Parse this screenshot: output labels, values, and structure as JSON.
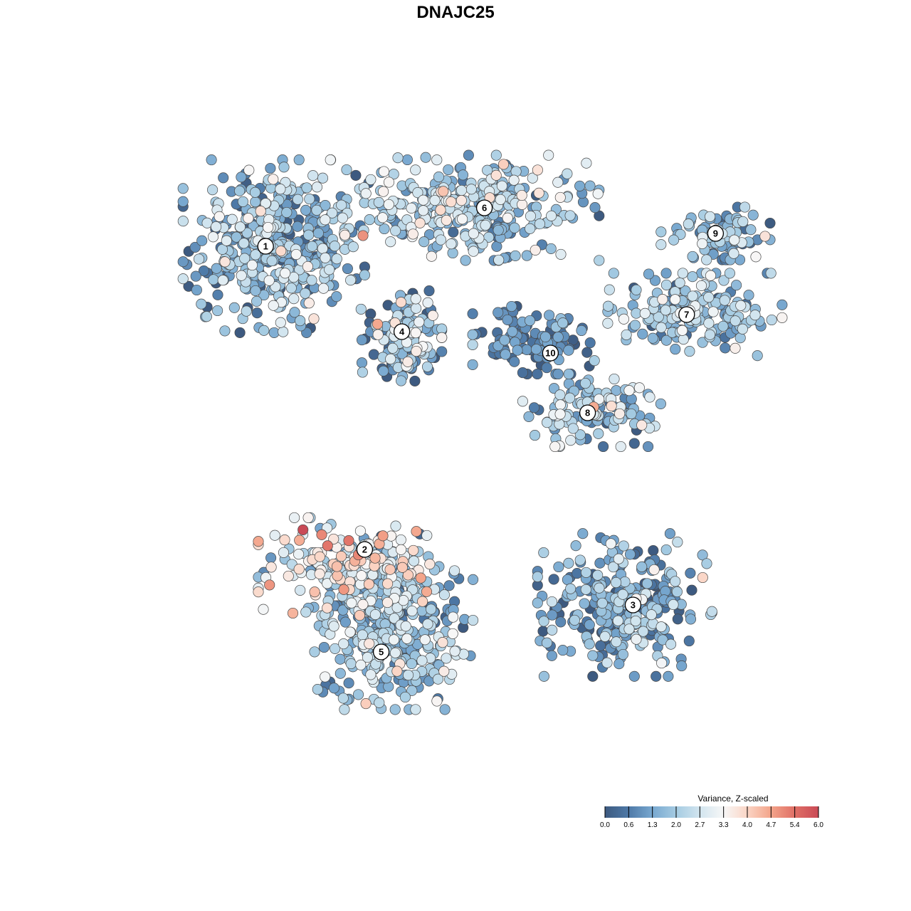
{
  "title": "DNAJC25",
  "chart_data": {
    "type": "scatter",
    "title": "DNAJC25",
    "xlabel": "",
    "ylabel": "",
    "grid": false,
    "legend_placement": "bottom-right",
    "color_scale": {
      "title": "Variance, Z-scaled",
      "min": 0.0,
      "max": 6.0,
      "tick_labels": [
        "0.0",
        "0.6",
        "1.3",
        "2.0",
        "2.7",
        "3.3",
        "4.0",
        "4.7",
        "5.4",
        "6.0"
      ],
      "colors": [
        "#3d5a80",
        "#4e79a7",
        "#78a8d0",
        "#a5cbe2",
        "#d2e5ef",
        "#f7f7f7",
        "#fbd5c5",
        "#f3a48a",
        "#e06f66",
        "#c94a56"
      ]
    },
    "clusters": [
      {
        "label": "1",
        "x": -4.6,
        "y": 4.9,
        "mean_value": 1.6
      },
      {
        "label": "2",
        "x": -2.2,
        "y": -2.2,
        "mean_value": 2.8
      },
      {
        "label": "3",
        "x": 4.3,
        "y": -3.5,
        "mean_value": 1.4
      },
      {
        "label": "4",
        "x": -1.3,
        "y": 2.9,
        "mean_value": 1.5
      },
      {
        "label": "5",
        "x": -1.8,
        "y": -4.6,
        "mean_value": 1.8
      },
      {
        "label": "6",
        "x": 0.7,
        "y": 5.8,
        "mean_value": 2.0
      },
      {
        "label": "7",
        "x": 5.6,
        "y": 3.3,
        "mean_value": 1.8
      },
      {
        "label": "8",
        "x": 3.2,
        "y": 1.0,
        "mean_value": 1.9
      },
      {
        "label": "9",
        "x": 6.3,
        "y": 5.2,
        "mean_value": 1.5
      },
      {
        "label": "10",
        "x": 2.3,
        "y": 2.4,
        "mean_value": 0.7
      }
    ]
  }
}
